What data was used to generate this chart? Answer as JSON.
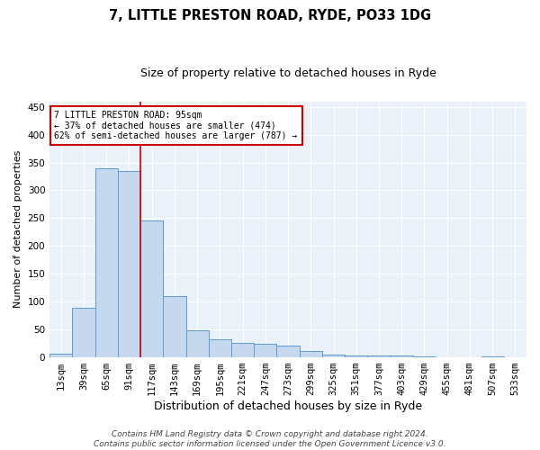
{
  "title1": "7, LITTLE PRESTON ROAD, RYDE, PO33 1DG",
  "title2": "Size of property relative to detached houses in Ryde",
  "xlabel": "Distribution of detached houses by size in Ryde",
  "ylabel": "Number of detached properties",
  "footnote": "Contains HM Land Registry data © Crown copyright and database right 2024.\nContains public sector information licensed under the Open Government Licence v3.0.",
  "bar_labels": [
    "13sqm",
    "39sqm",
    "65sqm",
    "91sqm",
    "117sqm",
    "143sqm",
    "169sqm",
    "195sqm",
    "221sqm",
    "247sqm",
    "273sqm",
    "299sqm",
    "325sqm",
    "351sqm",
    "377sqm",
    "403sqm",
    "429sqm",
    "455sqm",
    "481sqm",
    "507sqm",
    "533sqm"
  ],
  "bar_values": [
    5,
    88,
    340,
    335,
    245,
    110,
    48,
    32,
    26,
    24,
    20,
    11,
    4,
    3,
    3,
    2,
    1,
    0,
    0,
    1,
    0
  ],
  "bar_color": "#c5d8ed",
  "bar_edge_color": "#5b9bd5",
  "vline_x": 3.5,
  "vline_color": "#cc0000",
  "annotation_text": "7 LITTLE PRESTON ROAD: 95sqm\n← 37% of detached houses are smaller (474)\n62% of semi-detached houses are larger (787) →",
  "annotation_box_color": "white",
  "annotation_box_edge_color": "#cc0000",
  "ylim": [
    0,
    460
  ],
  "yticks": [
    0,
    50,
    100,
    150,
    200,
    250,
    300,
    350,
    400,
    450
  ],
  "bg_color": "#eaf1f8",
  "grid_color": "white",
  "title1_fontsize": 10.5,
  "title2_fontsize": 9,
  "xlabel_fontsize": 9,
  "ylabel_fontsize": 8,
  "tick_fontsize": 7.5,
  "annotation_fontsize": 7,
  "footnote_fontsize": 6.5
}
